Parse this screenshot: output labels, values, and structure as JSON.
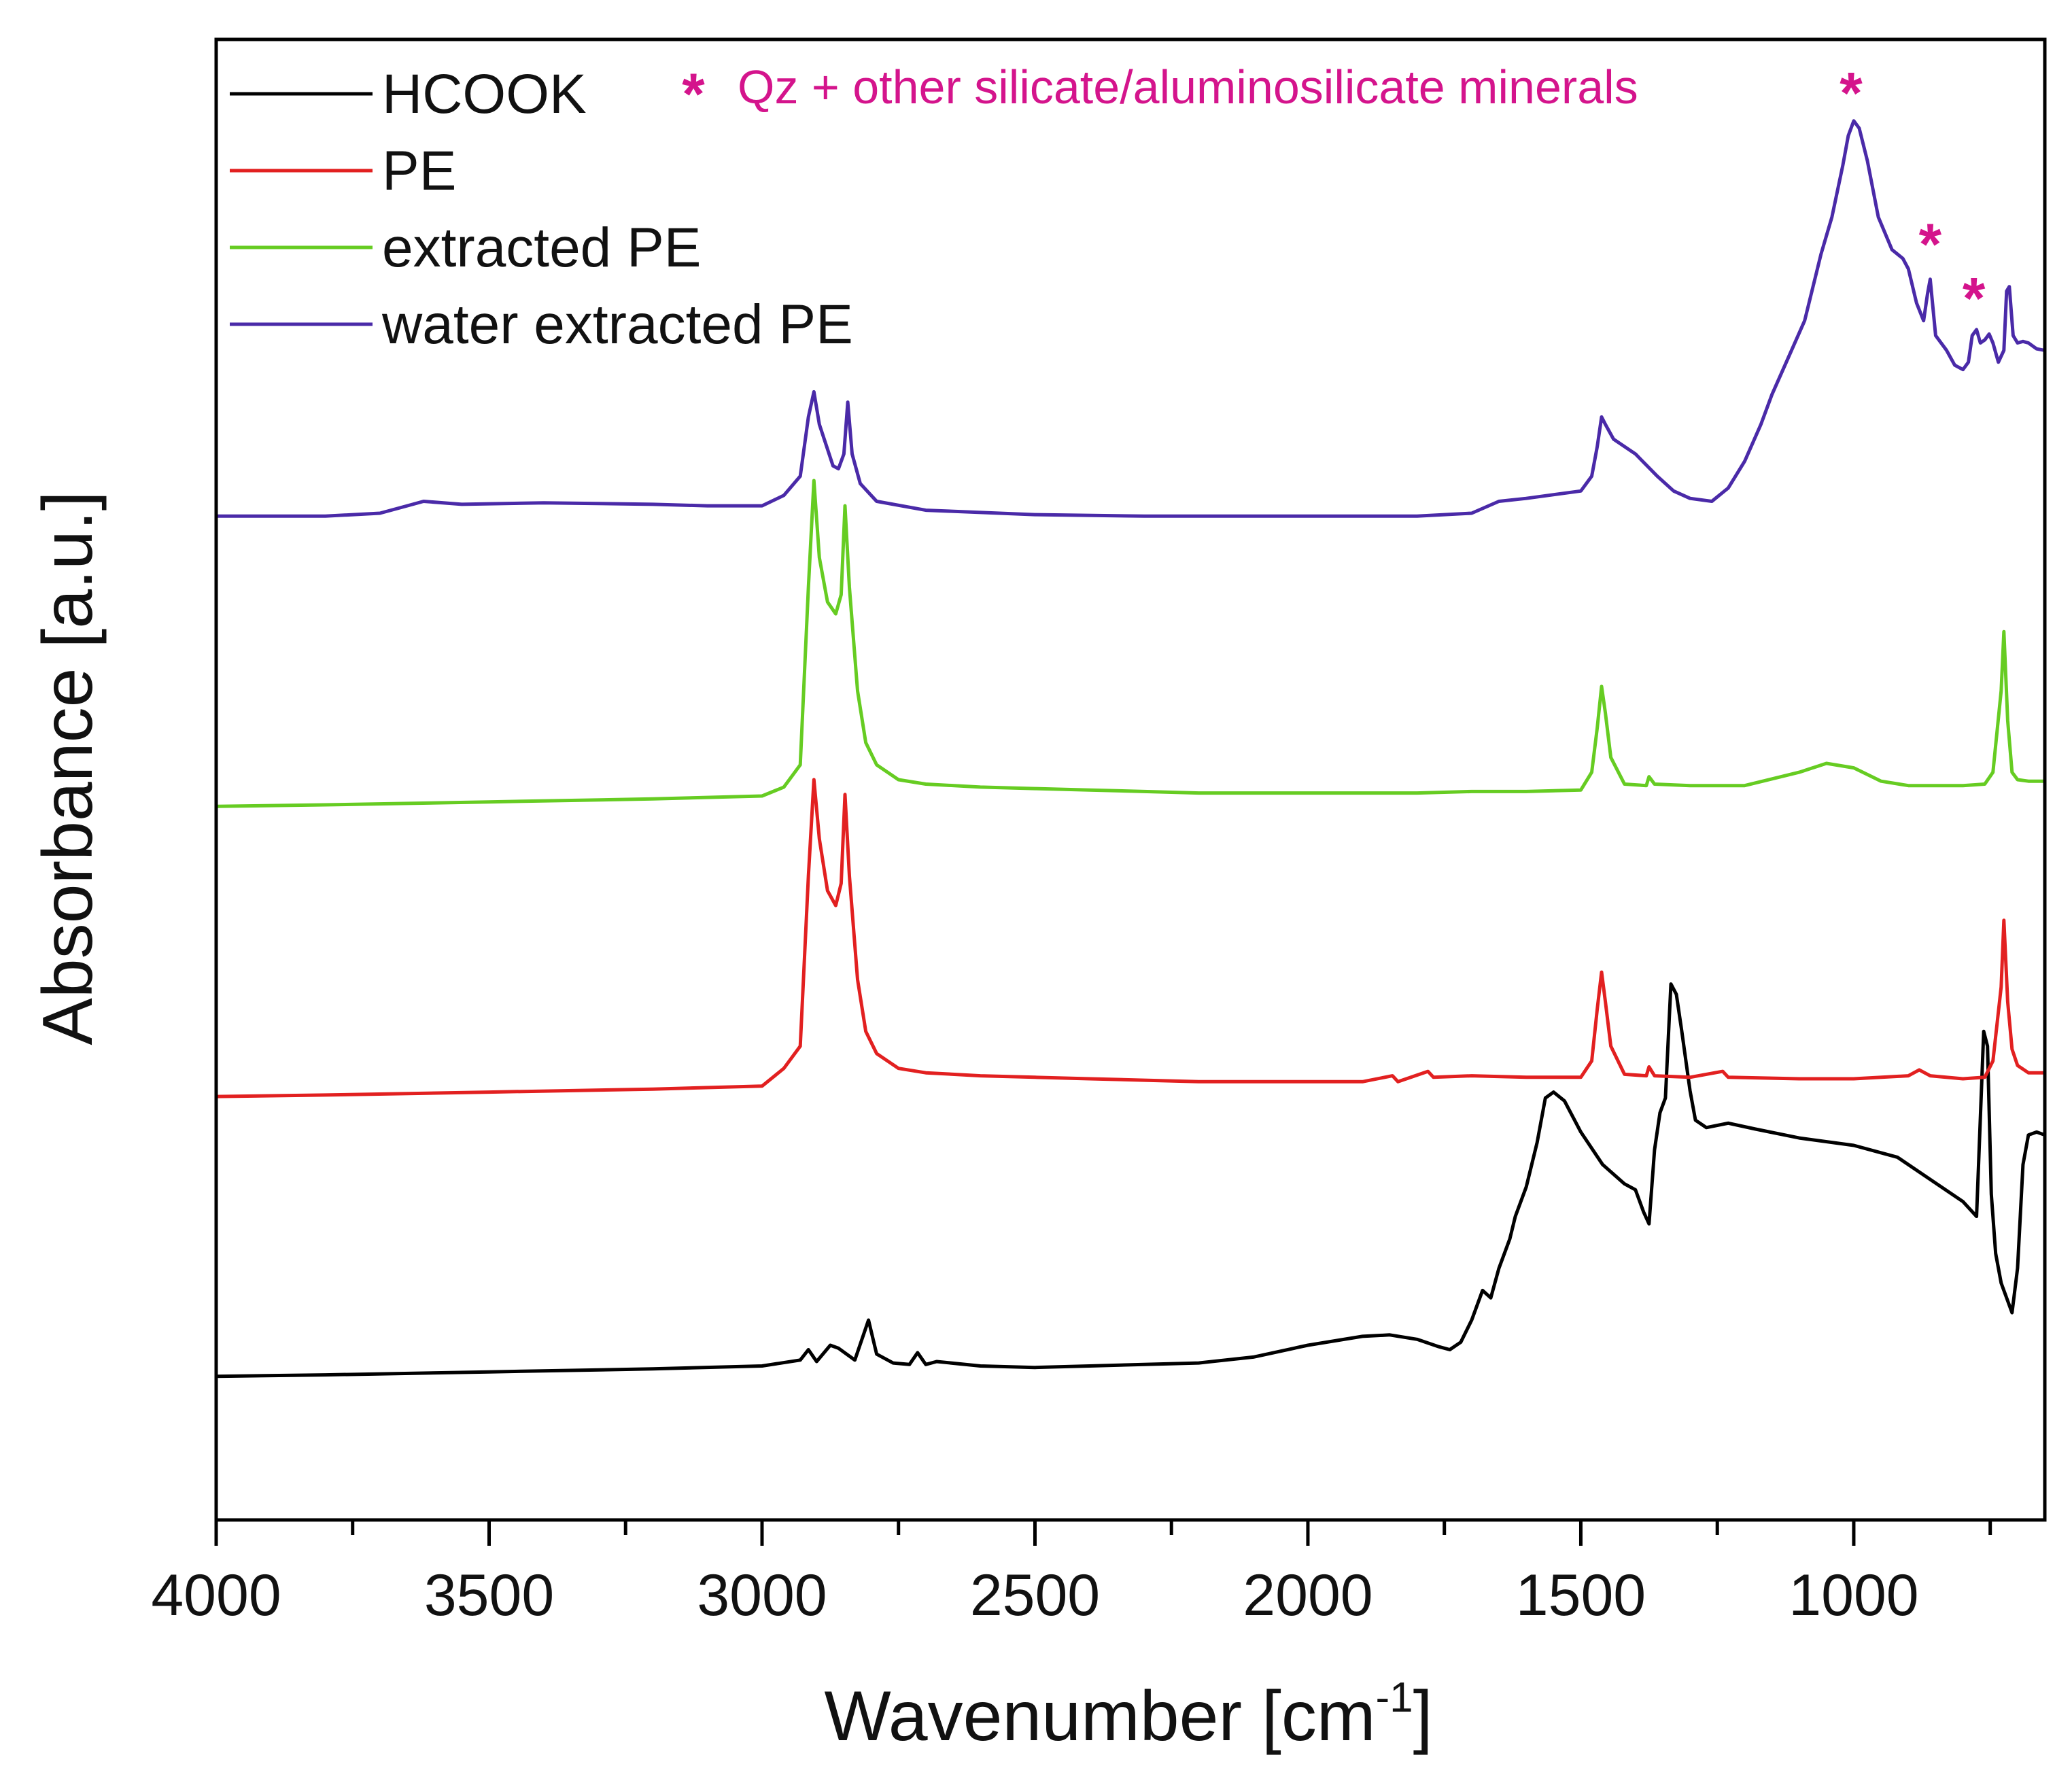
{
  "chart_data": {
    "type": "line",
    "title": "",
    "xlabel": "Wavenumber  [cm",
    "xlabel_sup": "-1",
    "xlabel_close": "]",
    "ylabel": "Absorbance [a.u.]",
    "xlim": [
      4000,
      650
    ],
    "ylim": [
      0,
      1
    ],
    "x_reversed": true,
    "y_ticks_shown": false,
    "x_ticks": [
      4000,
      3500,
      3000,
      2500,
      2000,
      1500,
      1000
    ],
    "x_tick_labels": [
      "4000",
      "3500",
      "3000",
      "2500",
      "2000",
      "1500",
      "1000"
    ],
    "annotation": {
      "marker": "*",
      "text": "Qz + other silicate/aluminosilicate minerals",
      "color": "#d4148c",
      "marked_peaks_cm-1": [
        1005,
        860,
        780
      ]
    },
    "legend_position": "top-left",
    "series": [
      {
        "name": "HCOOK",
        "color": "#000000",
        "points": [
          [
            4000,
            0.097
          ],
          [
            3800,
            0.098
          ],
          [
            3500,
            0.1
          ],
          [
            3200,
            0.102
          ],
          [
            3000,
            0.104
          ],
          [
            2930,
            0.108
          ],
          [
            2915,
            0.115
          ],
          [
            2900,
            0.107
          ],
          [
            2875,
            0.118
          ],
          [
            2860,
            0.116
          ],
          [
            2830,
            0.108
          ],
          [
            2805,
            0.135
          ],
          [
            2790,
            0.112
          ],
          [
            2760,
            0.106
          ],
          [
            2730,
            0.105
          ],
          [
            2715,
            0.113
          ],
          [
            2700,
            0.105
          ],
          [
            2680,
            0.107
          ],
          [
            2600,
            0.104
          ],
          [
            2500,
            0.103
          ],
          [
            2400,
            0.104
          ],
          [
            2300,
            0.105
          ],
          [
            2200,
            0.106
          ],
          [
            2100,
            0.11
          ],
          [
            2000,
            0.118
          ],
          [
            1900,
            0.124
          ],
          [
            1850,
            0.125
          ],
          [
            1800,
            0.122
          ],
          [
            1760,
            0.117
          ],
          [
            1740,
            0.115
          ],
          [
            1720,
            0.12
          ],
          [
            1700,
            0.135
          ],
          [
            1680,
            0.155
          ],
          [
            1665,
            0.15
          ],
          [
            1650,
            0.17
          ],
          [
            1630,
            0.19
          ],
          [
            1620,
            0.205
          ],
          [
            1600,
            0.225
          ],
          [
            1580,
            0.255
          ],
          [
            1565,
            0.285
          ],
          [
            1550,
            0.289
          ],
          [
            1530,
            0.283
          ],
          [
            1500,
            0.262
          ],
          [
            1460,
            0.24
          ],
          [
            1420,
            0.227
          ],
          [
            1400,
            0.223
          ],
          [
            1385,
            0.208
          ],
          [
            1375,
            0.2
          ],
          [
            1365,
            0.25
          ],
          [
            1355,
            0.275
          ],
          [
            1345,
            0.285
          ],
          [
            1335,
            0.362
          ],
          [
            1325,
            0.355
          ],
          [
            1315,
            0.33
          ],
          [
            1300,
            0.29
          ],
          [
            1290,
            0.27
          ],
          [
            1270,
            0.265
          ],
          [
            1230,
            0.268
          ],
          [
            1180,
            0.264
          ],
          [
            1100,
            0.258
          ],
          [
            1000,
            0.253
          ],
          [
            920,
            0.245
          ],
          [
            860,
            0.23
          ],
          [
            800,
            0.215
          ],
          [
            775,
            0.205
          ],
          [
            762,
            0.33
          ],
          [
            755,
            0.32
          ],
          [
            748,
            0.22
          ],
          [
            740,
            0.18
          ],
          [
            730,
            0.16
          ],
          [
            720,
            0.15
          ],
          [
            710,
            0.14
          ],
          [
            700,
            0.17
          ],
          [
            690,
            0.24
          ],
          [
            680,
            0.26
          ],
          [
            665,
            0.262
          ],
          [
            650,
            0.26
          ]
        ]
      },
      {
        "name": "PE",
        "color": "#e22020",
        "points": [
          [
            4000,
            0.286
          ],
          [
            3800,
            0.287
          ],
          [
            3500,
            0.289
          ],
          [
            3200,
            0.291
          ],
          [
            3000,
            0.293
          ],
          [
            2960,
            0.305
          ],
          [
            2930,
            0.32
          ],
          [
            2915,
            0.435
          ],
          [
            2905,
            0.5
          ],
          [
            2895,
            0.46
          ],
          [
            2880,
            0.425
          ],
          [
            2865,
            0.415
          ],
          [
            2855,
            0.43
          ],
          [
            2848,
            0.49
          ],
          [
            2840,
            0.435
          ],
          [
            2825,
            0.365
          ],
          [
            2810,
            0.33
          ],
          [
            2790,
            0.315
          ],
          [
            2750,
            0.305
          ],
          [
            2700,
            0.302
          ],
          [
            2600,
            0.3
          ],
          [
            2500,
            0.299
          ],
          [
            2400,
            0.298
          ],
          [
            2300,
            0.297
          ],
          [
            2200,
            0.296
          ],
          [
            2100,
            0.296
          ],
          [
            2000,
            0.296
          ],
          [
            1900,
            0.296
          ],
          [
            1845,
            0.3
          ],
          [
            1835,
            0.296
          ],
          [
            1780,
            0.303
          ],
          [
            1770,
            0.299
          ],
          [
            1700,
            0.3
          ],
          [
            1600,
            0.299
          ],
          [
            1500,
            0.299
          ],
          [
            1480,
            0.31
          ],
          [
            1470,
            0.345
          ],
          [
            1462,
            0.37
          ],
          [
            1455,
            0.35
          ],
          [
            1445,
            0.32
          ],
          [
            1420,
            0.301
          ],
          [
            1380,
            0.3
          ],
          [
            1375,
            0.306
          ],
          [
            1365,
            0.3
          ],
          [
            1300,
            0.299
          ],
          [
            1240,
            0.303
          ],
          [
            1230,
            0.299
          ],
          [
            1100,
            0.298
          ],
          [
            1000,
            0.298
          ],
          [
            900,
            0.3
          ],
          [
            880,
            0.304
          ],
          [
            860,
            0.3
          ],
          [
            800,
            0.298
          ],
          [
            760,
            0.299
          ],
          [
            745,
            0.31
          ],
          [
            730,
            0.36
          ],
          [
            725,
            0.405
          ],
          [
            718,
            0.35
          ],
          [
            710,
            0.318
          ],
          [
            700,
            0.307
          ],
          [
            680,
            0.302
          ],
          [
            650,
            0.302
          ]
        ]
      },
      {
        "name": "extracted PE",
        "color": "#66cc22",
        "points": [
          [
            4000,
            0.482
          ],
          [
            3800,
            0.483
          ],
          [
            3500,
            0.485
          ],
          [
            3200,
            0.487
          ],
          [
            3000,
            0.489
          ],
          [
            2960,
            0.495
          ],
          [
            2930,
            0.51
          ],
          [
            2915,
            0.63
          ],
          [
            2905,
            0.702
          ],
          [
            2895,
            0.65
          ],
          [
            2880,
            0.62
          ],
          [
            2865,
            0.612
          ],
          [
            2855,
            0.625
          ],
          [
            2848,
            0.685
          ],
          [
            2840,
            0.63
          ],
          [
            2825,
            0.56
          ],
          [
            2810,
            0.525
          ],
          [
            2790,
            0.51
          ],
          [
            2750,
            0.5
          ],
          [
            2700,
            0.497
          ],
          [
            2600,
            0.495
          ],
          [
            2500,
            0.494
          ],
          [
            2400,
            0.493
          ],
          [
            2300,
            0.492
          ],
          [
            2200,
            0.491
          ],
          [
            2100,
            0.491
          ],
          [
            2000,
            0.491
          ],
          [
            1900,
            0.491
          ],
          [
            1800,
            0.491
          ],
          [
            1700,
            0.492
          ],
          [
            1600,
            0.492
          ],
          [
            1500,
            0.493
          ],
          [
            1480,
            0.505
          ],
          [
            1470,
            0.535
          ],
          [
            1462,
            0.563
          ],
          [
            1455,
            0.545
          ],
          [
            1445,
            0.515
          ],
          [
            1420,
            0.497
          ],
          [
            1380,
            0.496
          ],
          [
            1375,
            0.502
          ],
          [
            1365,
            0.497
          ],
          [
            1300,
            0.496
          ],
          [
            1200,
            0.496
          ],
          [
            1100,
            0.505
          ],
          [
            1050,
            0.511
          ],
          [
            1000,
            0.508
          ],
          [
            950,
            0.499
          ],
          [
            900,
            0.496
          ],
          [
            800,
            0.496
          ],
          [
            760,
            0.497
          ],
          [
            745,
            0.505
          ],
          [
            730,
            0.56
          ],
          [
            725,
            0.6
          ],
          [
            718,
            0.54
          ],
          [
            710,
            0.505
          ],
          [
            700,
            0.5
          ],
          [
            680,
            0.499
          ],
          [
            650,
            0.499
          ]
        ]
      },
      {
        "name": "water extracted PE",
        "color": "#4a2aa8",
        "points": [
          [
            4000,
            0.678
          ],
          [
            3800,
            0.678
          ],
          [
            3700,
            0.68
          ],
          [
            3650,
            0.685
          ],
          [
            3620,
            0.688
          ],
          [
            3550,
            0.686
          ],
          [
            3400,
            0.687
          ],
          [
            3200,
            0.686
          ],
          [
            3100,
            0.685
          ],
          [
            3000,
            0.685
          ],
          [
            2960,
            0.692
          ],
          [
            2930,
            0.705
          ],
          [
            2915,
            0.745
          ],
          [
            2905,
            0.762
          ],
          [
            2895,
            0.74
          ],
          [
            2870,
            0.712
          ],
          [
            2860,
            0.71
          ],
          [
            2850,
            0.72
          ],
          [
            2843,
            0.755
          ],
          [
            2835,
            0.72
          ],
          [
            2820,
            0.7
          ],
          [
            2790,
            0.688
          ],
          [
            2700,
            0.682
          ],
          [
            2500,
            0.679
          ],
          [
            2300,
            0.678
          ],
          [
            2100,
            0.678
          ],
          [
            1900,
            0.678
          ],
          [
            1800,
            0.678
          ],
          [
            1700,
            0.68
          ],
          [
            1650,
            0.688
          ],
          [
            1600,
            0.69
          ],
          [
            1500,
            0.695
          ],
          [
            1480,
            0.705
          ],
          [
            1470,
            0.725
          ],
          [
            1462,
            0.745
          ],
          [
            1455,
            0.74
          ],
          [
            1440,
            0.73
          ],
          [
            1400,
            0.72
          ],
          [
            1360,
            0.705
          ],
          [
            1330,
            0.695
          ],
          [
            1300,
            0.69
          ],
          [
            1260,
            0.688
          ],
          [
            1230,
            0.697
          ],
          [
            1200,
            0.715
          ],
          [
            1170,
            0.74
          ],
          [
            1150,
            0.76
          ],
          [
            1120,
            0.785
          ],
          [
            1090,
            0.81
          ],
          [
            1060,
            0.855
          ],
          [
            1040,
            0.88
          ],
          [
            1020,
            0.915
          ],
          [
            1010,
            0.935
          ],
          [
            1000,
            0.945
          ],
          [
            990,
            0.94
          ],
          [
            975,
            0.918
          ],
          [
            955,
            0.88
          ],
          [
            930,
            0.858
          ],
          [
            910,
            0.852
          ],
          [
            900,
            0.845
          ],
          [
            885,
            0.822
          ],
          [
            872,
            0.81
          ],
          [
            865,
            0.828
          ],
          [
            860,
            0.838
          ],
          [
            850,
            0.8
          ],
          [
            830,
            0.79
          ],
          [
            815,
            0.78
          ],
          [
            800,
            0.777
          ],
          [
            790,
            0.782
          ],
          [
            783,
            0.8
          ],
          [
            775,
            0.804
          ],
          [
            768,
            0.795
          ],
          [
            760,
            0.797
          ],
          [
            752,
            0.801
          ],
          [
            745,
            0.795
          ],
          [
            735,
            0.782
          ],
          [
            725,
            0.79
          ],
          [
            720,
            0.83
          ],
          [
            715,
            0.833
          ],
          [
            708,
            0.8
          ],
          [
            700,
            0.795
          ],
          [
            690,
            0.796
          ],
          [
            680,
            0.795
          ],
          [
            665,
            0.791
          ],
          [
            650,
            0.79
          ]
        ]
      }
    ]
  }
}
